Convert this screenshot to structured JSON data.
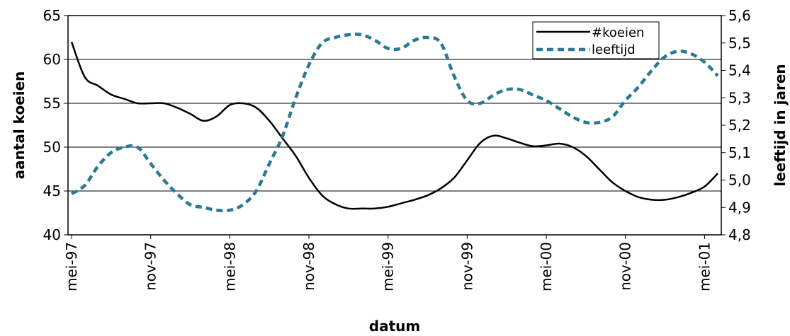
{
  "chart_data": {
    "type": "line",
    "title": "",
    "xlabel": "datum",
    "ylabel_left": "aantal koeien",
    "ylabel_right": "leeftijd in jaren",
    "x_tick_labels": [
      "mei-97",
      "nov-97",
      "mei-98",
      "nov-98",
      "mei-99",
      "nov-99",
      "mei-00",
      "nov-00",
      "mei-01"
    ],
    "x_range": [
      "1997-05",
      "2001-06"
    ],
    "ylim_left": [
      40,
      65
    ],
    "yticks_left": [
      "40",
      "45",
      "50",
      "55",
      "60",
      "65"
    ],
    "ylim_right": [
      4.8,
      5.6
    ],
    "yticks_right": [
      "4,8",
      "4,9",
      "5,0",
      "5,1",
      "5,2",
      "5,3",
      "5,4",
      "5,5",
      "5,6"
    ],
    "grid": "horizontal",
    "legend": "top-right",
    "series": [
      {
        "name": "#koeien",
        "axis": "left",
        "color": "#000000",
        "style": "solid",
        "x": [
          "1997-05",
          "1997-06",
          "1997-07",
          "1997-08",
          "1997-09",
          "1997-10",
          "1997-11",
          "1997-12",
          "1998-01",
          "1998-02",
          "1998-03",
          "1998-04",
          "1998-05",
          "1998-06",
          "1998-07",
          "1998-08",
          "1998-09",
          "1998-10",
          "1998-11",
          "1998-12",
          "1999-01",
          "1999-02",
          "1999-03",
          "1999-04",
          "1999-05",
          "1999-06",
          "1999-07",
          "1999-08",
          "1999-09",
          "1999-10",
          "1999-11",
          "1999-12",
          "2000-01",
          "2000-02",
          "2000-03",
          "2000-04",
          "2000-05",
          "2000-06",
          "2000-07",
          "2000-08",
          "2000-09",
          "2000-10",
          "2000-11",
          "2000-12",
          "2001-01",
          "2001-02",
          "2001-03",
          "2001-04",
          "2001-05",
          "2001-06"
        ],
        "values": [
          62.0,
          58.0,
          57.0,
          56.0,
          55.5,
          55.0,
          55.0,
          55.0,
          54.5,
          53.8,
          53.0,
          53.5,
          54.8,
          55.0,
          54.5,
          53.0,
          51.0,
          49.0,
          46.5,
          44.5,
          43.5,
          43.0,
          43.0,
          43.0,
          43.2,
          43.6,
          44.0,
          44.5,
          45.3,
          46.5,
          48.5,
          50.5,
          51.3,
          51.0,
          50.5,
          50.1,
          50.2,
          50.4,
          50.0,
          49.0,
          47.5,
          46.0,
          45.0,
          44.3,
          44.0,
          44.0,
          44.3,
          44.8,
          45.5,
          47.0
        ]
      },
      {
        "name": "leeftijd",
        "axis": "right",
        "color": "#2a7a95",
        "style": "dashed",
        "x": [
          "1997-05",
          "1997-06",
          "1997-07",
          "1997-08",
          "1997-09",
          "1997-10",
          "1997-11",
          "1997-12",
          "1998-01",
          "1998-02",
          "1998-03",
          "1998-04",
          "1998-05",
          "1998-06",
          "1998-07",
          "1998-08",
          "1998-09",
          "1998-10",
          "1998-11",
          "1998-12",
          "1999-01",
          "1999-02",
          "1999-03",
          "1999-04",
          "1999-05",
          "1999-06",
          "1999-07",
          "1999-08",
          "1999-09",
          "1999-10",
          "1999-11",
          "1999-12",
          "2000-01",
          "2000-02",
          "2000-03",
          "2000-04",
          "2000-05",
          "2000-06",
          "2000-07",
          "2000-08",
          "2000-09",
          "2000-10",
          "2000-11",
          "2000-12",
          "2001-01",
          "2001-02",
          "2001-03",
          "2001-04",
          "2001-05",
          "2001-06"
        ],
        "values": [
          4.95,
          4.98,
          5.05,
          5.1,
          5.12,
          5.12,
          5.06,
          5.0,
          4.95,
          4.91,
          4.9,
          4.89,
          4.89,
          4.91,
          4.96,
          5.06,
          5.16,
          5.3,
          5.42,
          5.5,
          5.52,
          5.53,
          5.53,
          5.51,
          5.48,
          5.48,
          5.51,
          5.52,
          5.5,
          5.38,
          5.29,
          5.28,
          5.31,
          5.33,
          5.33,
          5.31,
          5.29,
          5.26,
          5.23,
          5.21,
          5.21,
          5.23,
          5.29,
          5.34,
          5.4,
          5.45,
          5.47,
          5.46,
          5.43,
          5.38
        ]
      }
    ]
  }
}
